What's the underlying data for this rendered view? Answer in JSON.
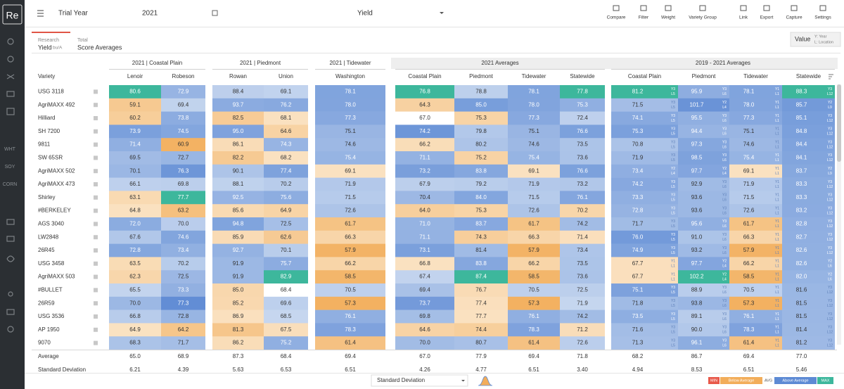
{
  "sidebar": {
    "logo": "Re",
    "crops": [
      "WHT",
      "SOY",
      "CORN"
    ]
  },
  "toolbar": {
    "trial_year_label": "Trial Year",
    "year": "2021",
    "metric": "Yield",
    "buttons": [
      "Compare",
      "Filter",
      "Weight",
      "Variety Group",
      "Link",
      "Export",
      "Capture",
      "Settings"
    ]
  },
  "tabs": [
    {
      "line1": "Research",
      "line2": "Yield",
      "unit": "bu/A"
    },
    {
      "line1": "Total",
      "line2": "Score Averages"
    }
  ],
  "value_toggle": {
    "label": "Value",
    "year_key": "Y: Year",
    "location_key": "L: Location"
  },
  "table": {
    "variety_header": "Variety",
    "groups": [
      {
        "title": "2021 | Coastal Plain",
        "columns": [
          "Lenoir",
          "Robeson"
        ]
      },
      {
        "title": "2021 | Piedmont",
        "columns": [
          "Rowan",
          "Union"
        ]
      },
      {
        "title": "2021 | Tidewater",
        "columns": [
          "Washington"
        ]
      },
      {
        "title": "2021 Averages",
        "columns": [
          "Coastal Plain",
          "Piedmont",
          "Tidewater",
          "Statewide"
        ]
      },
      {
        "title": "2019 - 2021 Averages",
        "columns": [
          "Coastal Plain",
          "Piedmont",
          "Tidewater",
          "Statewide"
        ]
      }
    ],
    "rows": [
      {
        "variety": "USG 3118",
        "values": [
          "80.6",
          "72.9",
          "88.4",
          "69.1",
          "78.1",
          "76.8",
          "78.8",
          "78.1",
          "77.8",
          "81.2",
          "95.9",
          "78.1",
          "88.3"
        ],
        "multi_year": [
          [
            "Y3",
            "L5"
          ],
          [
            "Y3",
            "L6"
          ],
          [
            "Y1",
            "L1"
          ],
          [
            "Y3",
            "L12"
          ]
        ]
      },
      {
        "variety": "AgriMAXX 492",
        "values": [
          "59.1",
          "69.4",
          "93.7",
          "76.2",
          "78.0",
          "64.3",
          "85.0",
          "78.0",
          "75.3",
          "71.5",
          "101.7",
          "78.0",
          "85.7"
        ],
        "multi_year": [
          [
            "Y3",
            "L5"
          ],
          [
            "Y2",
            "L4"
          ],
          [
            "Y1",
            "L1"
          ],
          [
            "Y2",
            "L9"
          ]
        ]
      },
      {
        "variety": "Hilliard",
        "values": [
          "60.2",
          "73.8",
          "82.5",
          "68.1",
          "77.3",
          "67.0",
          "75.3",
          "77.3",
          "72.4",
          "74.1",
          "95.5",
          "77.3",
          "85.1"
        ],
        "multi_year": [
          [
            "Y3",
            "L5"
          ],
          [
            "Y3",
            "L6"
          ],
          [
            "Y1",
            "L1"
          ],
          [
            "Y3",
            "L12"
          ]
        ]
      },
      {
        "variety": "SH 7200",
        "values": [
          "73.9",
          "74.5",
          "95.0",
          "64.6",
          "75.1",
          "74.2",
          "79.8",
          "75.1",
          "76.6",
          "75.3",
          "94.4",
          "75.1",
          "84.8"
        ],
        "multi_year": [
          [
            "Y3",
            "L5"
          ],
          [
            "Y3",
            "L6"
          ],
          [
            "Y1",
            "L1"
          ],
          [
            "Y3",
            "L12"
          ]
        ]
      },
      {
        "variety": "9811",
        "values": [
          "71.4",
          "60.9",
          "86.1",
          "74.3",
          "74.6",
          "66.2",
          "80.2",
          "74.6",
          "73.5",
          "70.8",
          "97.3",
          "74.6",
          "84.4"
        ],
        "multi_year": [
          [
            "Y3",
            "L5"
          ],
          [
            "Y3",
            "L6"
          ],
          [
            "Y1",
            "L1"
          ],
          [
            "Y3",
            "L12"
          ]
        ]
      },
      {
        "variety": "SW 65SR",
        "values": [
          "69.5",
          "72.7",
          "82.2",
          "68.2",
          "75.4",
          "71.1",
          "75.2",
          "75.4",
          "73.6",
          "71.9",
          "98.5",
          "75.4",
          "84.1"
        ],
        "multi_year": [
          [
            "Y3",
            "L5"
          ],
          [
            "Y3",
            "L6"
          ],
          [
            "Y1",
            "L1"
          ],
          [
            "Y3",
            "L12"
          ]
        ]
      },
      {
        "variety": "AgriMAXX 502",
        "values": [
          "70.1",
          "76.3",
          "90.1",
          "77.4",
          "69.1",
          "73.2",
          "83.8",
          "69.1",
          "76.6",
          "73.4",
          "97.7",
          "69.1",
          "83.7"
        ],
        "multi_year": [
          [
            "Y2",
            "L4"
          ],
          [
            "Y2",
            "L4"
          ],
          [
            "Y1",
            "L1"
          ],
          [
            "Y2",
            "L9"
          ]
        ]
      },
      {
        "variety": "AgriMAXX 473",
        "values": [
          "66.1",
          "69.8",
          "88.1",
          "70.2",
          "71.9",
          "67.9",
          "79.2",
          "71.9",
          "73.2",
          "74.2",
          "92.9",
          "71.9",
          "83.3"
        ],
        "multi_year": [
          [
            "Y3",
            "L5"
          ],
          [
            "Y3",
            "L6"
          ],
          [
            "Y1",
            "L1"
          ],
          [
            "Y3",
            "L12"
          ]
        ]
      },
      {
        "variety": "Shirley",
        "values": [
          "63.1",
          "77.7",
          "92.5",
          "75.6",
          "71.5",
          "70.4",
          "84.0",
          "71.5",
          "76.1",
          "73.3",
          "93.6",
          "71.5",
          "83.3"
        ],
        "multi_year": [
          [
            "Y3",
            "L5"
          ],
          [
            "Y3",
            "L6"
          ],
          [
            "Y1",
            "L1"
          ],
          [
            "Y3",
            "L12"
          ]
        ]
      },
      {
        "variety": "#BERKELEY",
        "values": [
          "64.8",
          "63.2",
          "85.6",
          "64.9",
          "72.6",
          "64.0",
          "75.3",
          "72.6",
          "70.2",
          "72.8",
          "93.6",
          "72.6",
          "83.2"
        ],
        "multi_year": [
          [
            "Y3",
            "L5"
          ],
          [
            "Y3",
            "L6"
          ],
          [
            "Y1",
            "L1"
          ],
          [
            "Y3",
            "L12"
          ]
        ]
      },
      {
        "variety": "AGS 3040",
        "values": [
          "72.0",
          "70.0",
          "94.8",
          "72.5",
          "61.7",
          "71.0",
          "83.7",
          "61.7",
          "74.2",
          "71.7",
          "95.6",
          "61.7",
          "82.8"
        ],
        "multi_year": [
          [
            "Y3",
            "L5"
          ],
          [
            "Y3",
            "L6"
          ],
          [
            "Y1",
            "L1"
          ],
          [
            "Y3",
            "L12"
          ]
        ]
      },
      {
        "variety": "LW2848",
        "values": [
          "67.6",
          "74.6",
          "85.9",
          "62.6",
          "66.3",
          "71.1",
          "74.3",
          "66.3",
          "71.4",
          "76.0",
          "91.0",
          "66.3",
          "82.7"
        ],
        "multi_year": [
          [
            "Y3",
            "L5"
          ],
          [
            "Y3",
            "L6"
          ],
          [
            "Y1",
            "L1"
          ],
          [
            "Y3",
            "L12"
          ]
        ]
      },
      {
        "variety": "26R45",
        "values": [
          "72.8",
          "73.4",
          "92.7",
          "70.1",
          "57.9",
          "73.1",
          "81.4",
          "57.9",
          "73.4",
          "74.9",
          "93.2",
          "57.9",
          "82.6"
        ],
        "multi_year": [
          [
            "Y3",
            "L5"
          ],
          [
            "Y3",
            "L6"
          ],
          [
            "Y1",
            "L1"
          ],
          [
            "Y3",
            "L12"
          ]
        ]
      },
      {
        "variety": "USG 3458",
        "values": [
          "63.5",
          "70.2",
          "91.9",
          "75.7",
          "66.2",
          "66.8",
          "83.8",
          "66.2",
          "73.5",
          "67.7",
          "97.7",
          "66.2",
          "82.6"
        ],
        "multi_year": [
          [
            "Y1",
            "L1"
          ],
          [
            "Y2",
            "L4"
          ],
          [
            "Y1",
            "L1"
          ],
          [
            "Y2",
            "L6"
          ]
        ]
      },
      {
        "variety": "AgriMAXX 503",
        "values": [
          "62.3",
          "72.5",
          "91.9",
          "82.9",
          "58.5",
          "67.4",
          "87.4",
          "58.5",
          "73.6",
          "67.7",
          "102.2",
          "58.5",
          "82.0"
        ],
        "multi_year": [
          [
            "Y1",
            "L1"
          ],
          [
            "Y2",
            "L4"
          ],
          [
            "Y1",
            "L1"
          ],
          [
            "Y2",
            "L6"
          ]
        ]
      },
      {
        "variety": "#BULLET",
        "values": [
          "65.5",
          "73.3",
          "85.0",
          "68.4",
          "70.5",
          "69.4",
          "76.7",
          "70.5",
          "72.5",
          "75.1",
          "88.9",
          "70.5",
          "81.6"
        ],
        "multi_year": [
          [
            "Y3",
            "L5"
          ],
          [
            "Y3",
            "L6"
          ],
          [
            "Y1",
            "L1"
          ],
          [
            "Y3",
            "L12"
          ]
        ]
      },
      {
        "variety": "26R59",
        "values": [
          "70.0",
          "77.3",
          "85.2",
          "69.6",
          "57.3",
          "73.7",
          "77.4",
          "57.3",
          "71.9",
          "71.8",
          "93.8",
          "57.3",
          "81.5"
        ],
        "multi_year": [
          [
            "Y3",
            "L5"
          ],
          [
            "Y3",
            "L6"
          ],
          [
            "Y1",
            "L1"
          ],
          [
            "Y3",
            "L12"
          ]
        ]
      },
      {
        "variety": "USG 3536",
        "values": [
          "66.8",
          "72.8",
          "86.9",
          "68.5",
          "76.1",
          "69.8",
          "77.7",
          "76.1",
          "74.2",
          "73.5",
          "89.1",
          "76.1",
          "81.5"
        ],
        "multi_year": [
          [
            "Y3",
            "L5"
          ],
          [
            "Y3",
            "L6"
          ],
          [
            "Y1",
            "L1"
          ],
          [
            "Y3",
            "L12"
          ]
        ]
      },
      {
        "variety": "AP 1950",
        "values": [
          "64.9",
          "64.2",
          "81.3",
          "67.5",
          "78.3",
          "64.6",
          "74.4",
          "78.3",
          "71.2",
          "71.6",
          "90.0",
          "78.3",
          "81.4"
        ],
        "multi_year": [
          [
            "Y3",
            "L5"
          ],
          [
            "Y3",
            "L6"
          ],
          [
            "Y1",
            "L1"
          ],
          [
            "Y3",
            "L12"
          ]
        ]
      },
      {
        "variety": "9070",
        "values": [
          "68.3",
          "71.7",
          "86.2",
          "75.2",
          "61.4",
          "70.0",
          "80.7",
          "61.4",
          "72.6",
          "71.3",
          "96.1",
          "61.4",
          "81.2"
        ],
        "multi_year": [
          [
            "Y3",
            "L5"
          ],
          [
            "Y3",
            "L6"
          ],
          [
            "Y1",
            "L1"
          ],
          [
            "Y3",
            "L12"
          ]
        ]
      }
    ],
    "summary": [
      {
        "label": "Average",
        "values": [
          "65.0",
          "68.9",
          "87.3",
          "68.4",
          "69.4",
          "67.0",
          "77.9",
          "69.4",
          "71.8",
          "68.2",
          "86.7",
          "69.4",
          "77.0"
        ]
      },
      {
        "label": "Standard Deviation",
        "values": [
          "6.21",
          "4.39",
          "5.63",
          "6.53",
          "6.51",
          "4.26",
          "4.77",
          "6.51",
          "3.40",
          "4.94",
          "8.53",
          "6.51",
          "5.46"
        ]
      }
    ]
  },
  "footer": {
    "color_by": "Standard Deviation",
    "legend": [
      "MIN",
      "Below Average",
      "AVG",
      "Above Average",
      "MAX"
    ]
  },
  "colors": {
    "min": "#e8594a",
    "below_far": "#f2ad5a",
    "below_near": "#fae2c2",
    "above_near": "#c7d7ef",
    "above_far": "#5d8ad4",
    "max": "#3db79c"
  }
}
